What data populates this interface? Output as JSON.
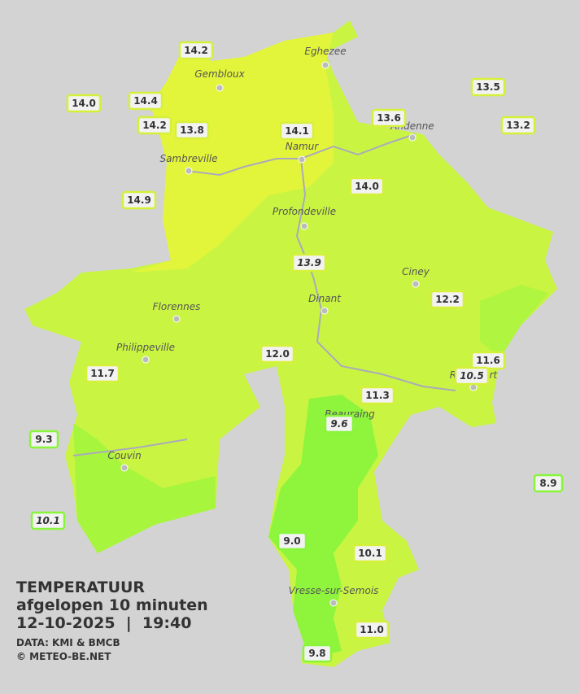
{
  "cities": [
    "Eghezee",
    "Gembloux",
    "Andenne",
    "Namur",
    "Sambreville",
    "Profondeville",
    "Ciney",
    "Dinant",
    "Florennes",
    "Philippeville",
    "Rochefort",
    "Beauraing",
    "Couvin",
    "Vresse-sur-Semois"
  ],
  "stations": [
    "14.2",
    "14.0",
    "14.4",
    "14.2",
    "13.8",
    "14.1",
    "13.6",
    "13.5",
    "13.2",
    "14.9",
    "14.0",
    "13.9",
    "12.2",
    "12.0",
    "11.7",
    "11.6",
    "10.5",
    "11.3",
    "9.6",
    "9.3",
    "8.9",
    "10.1",
    "9.0",
    "10.1",
    "11.0",
    "9.8"
  ],
  "legend": {
    "title": "TEMPERATUUR",
    "period": "afgelopen 10 minuten",
    "datetime": "12-10-2025  |  19:40",
    "source": "DATA: KMI & BMCB",
    "credit": "© METEO-BE.NET"
  }
}
